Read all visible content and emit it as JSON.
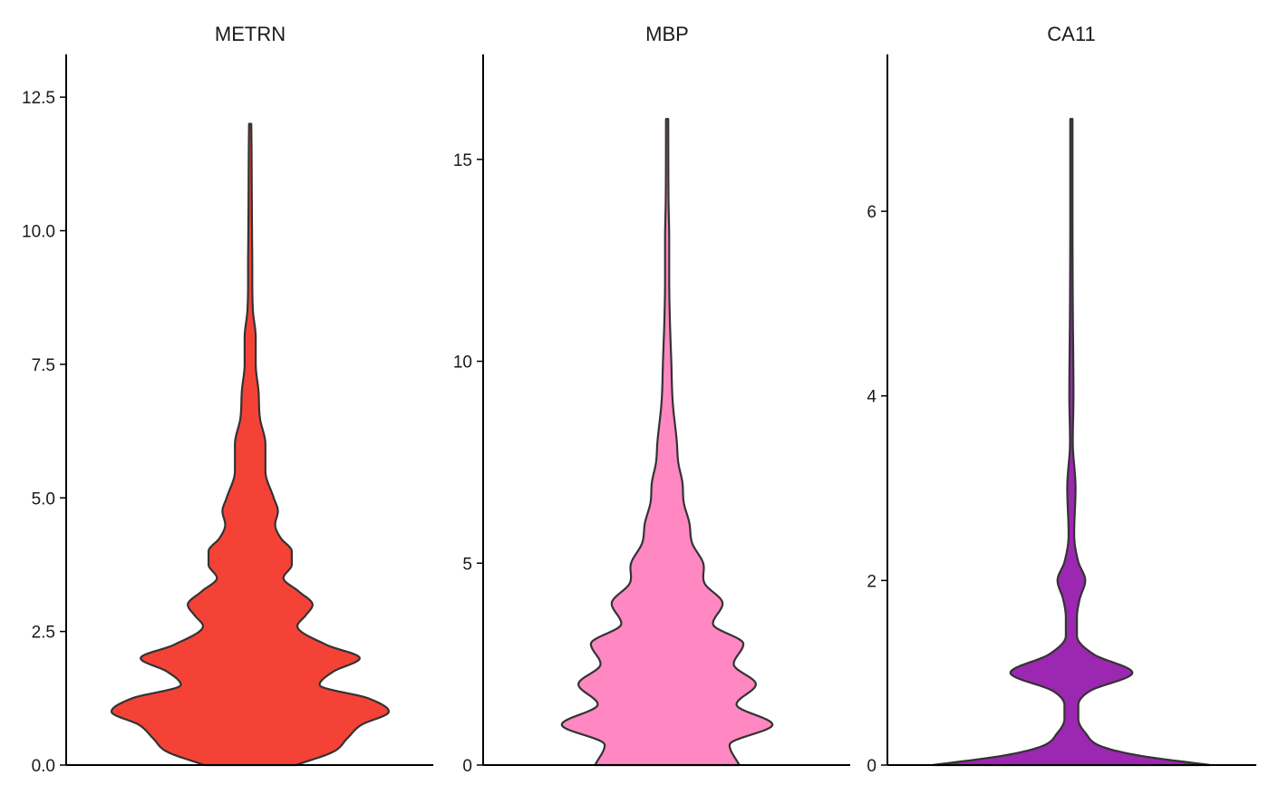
{
  "chart_data": [
    {
      "type": "violin",
      "title": "METRN",
      "xlabel": "",
      "ylabel": "",
      "ylim": [
        0,
        13.3
      ],
      "yticks": [
        0,
        2.5,
        5,
        7.5,
        10,
        12.5
      ],
      "ytick_labels": [
        "0.0",
        "2.5",
        "5.0",
        "7.5",
        "10.0",
        "12.5"
      ],
      "fill_color": "#F44336",
      "y_max": 12,
      "density": [
        {
          "y": 0,
          "w": 0.33
        },
        {
          "y": 0.25,
          "w": 0.6
        },
        {
          "y": 0.5,
          "w": 0.7
        },
        {
          "y": 0.75,
          "w": 0.8
        },
        {
          "y": 1.0,
          "w": 1.0
        },
        {
          "y": 1.25,
          "w": 0.85
        },
        {
          "y": 1.5,
          "w": 0.5
        },
        {
          "y": 1.75,
          "w": 0.6
        },
        {
          "y": 2.0,
          "w": 0.79
        },
        {
          "y": 2.25,
          "w": 0.55
        },
        {
          "y": 2.6,
          "w": 0.34
        },
        {
          "y": 2.8,
          "w": 0.4
        },
        {
          "y": 3.0,
          "w": 0.45
        },
        {
          "y": 3.25,
          "w": 0.35
        },
        {
          "y": 3.5,
          "w": 0.24
        },
        {
          "y": 3.75,
          "w": 0.3
        },
        {
          "y": 4.0,
          "w": 0.3
        },
        {
          "y": 4.25,
          "w": 0.22
        },
        {
          "y": 4.5,
          "w": 0.18
        },
        {
          "y": 4.75,
          "w": 0.2
        },
        {
          "y": 5.0,
          "w": 0.17
        },
        {
          "y": 5.5,
          "w": 0.11
        },
        {
          "y": 6.0,
          "w": 0.11
        },
        {
          "y": 6.5,
          "w": 0.07
        },
        {
          "y": 7.0,
          "w": 0.06
        },
        {
          "y": 7.5,
          "w": 0.04
        },
        {
          "y": 8.0,
          "w": 0.04
        },
        {
          "y": 8.5,
          "w": 0.02
        },
        {
          "y": 9.5,
          "w": 0.015
        },
        {
          "y": 10.5,
          "w": 0.012
        },
        {
          "y": 11.5,
          "w": 0.01
        },
        {
          "y": 12.0,
          "w": 0.008
        }
      ]
    },
    {
      "type": "violin",
      "title": "MBP",
      "xlabel": "",
      "ylabel": "",
      "ylim": [
        0,
        17.6
      ],
      "yticks": [
        0,
        5,
        10,
        15
      ],
      "ytick_labels": [
        "0",
        "5",
        "10",
        "15"
      ],
      "fill_color": "#FF88C2",
      "y_max": 16,
      "density": [
        {
          "y": 0,
          "w": 0.52
        },
        {
          "y": 0.5,
          "w": 0.45
        },
        {
          "y": 1.0,
          "w": 0.76
        },
        {
          "y": 1.5,
          "w": 0.5
        },
        {
          "y": 2.0,
          "w": 0.64
        },
        {
          "y": 2.5,
          "w": 0.48
        },
        {
          "y": 3.0,
          "w": 0.55
        },
        {
          "y": 3.5,
          "w": 0.33
        },
        {
          "y": 4.0,
          "w": 0.4
        },
        {
          "y": 4.5,
          "w": 0.27
        },
        {
          "y": 5.0,
          "w": 0.26
        },
        {
          "y": 5.5,
          "w": 0.18
        },
        {
          "y": 6.0,
          "w": 0.16
        },
        {
          "y": 6.5,
          "w": 0.12
        },
        {
          "y": 7.0,
          "w": 0.11
        },
        {
          "y": 7.5,
          "w": 0.08
        },
        {
          "y": 8.0,
          "w": 0.07
        },
        {
          "y": 9.0,
          "w": 0.04
        },
        {
          "y": 10.0,
          "w": 0.03
        },
        {
          "y": 11.0,
          "w": 0.02
        },
        {
          "y": 12.0,
          "w": 0.015
        },
        {
          "y": 13.0,
          "w": 0.015
        },
        {
          "y": 14.0,
          "w": 0.01
        },
        {
          "y": 16.0,
          "w": 0.008
        }
      ]
    },
    {
      "type": "violin",
      "title": "CA11",
      "xlabel": "",
      "ylabel": "",
      "ylim": [
        0,
        7.7
      ],
      "yticks": [
        0,
        2,
        4,
        6
      ],
      "ytick_labels": [
        "0",
        "2",
        "4",
        "6"
      ],
      "fill_color": "#9C27B0",
      "y_max": 7,
      "density": [
        {
          "y": 0,
          "w": 1.0
        },
        {
          "y": 0.1,
          "w": 0.5
        },
        {
          "y": 0.2,
          "w": 0.22
        },
        {
          "y": 0.35,
          "w": 0.1
        },
        {
          "y": 0.5,
          "w": 0.05
        },
        {
          "y": 0.65,
          "w": 0.05
        },
        {
          "y": 0.8,
          "w": 0.13
        },
        {
          "y": 1.0,
          "w": 0.44
        },
        {
          "y": 1.2,
          "w": 0.16
        },
        {
          "y": 1.4,
          "w": 0.04
        },
        {
          "y": 1.6,
          "w": 0.04
        },
        {
          "y": 1.8,
          "w": 0.06
        },
        {
          "y": 2.0,
          "w": 0.1
        },
        {
          "y": 2.2,
          "w": 0.05
        },
        {
          "y": 2.5,
          "w": 0.02
        },
        {
          "y": 3.0,
          "w": 0.03
        },
        {
          "y": 3.5,
          "w": 0.01
        },
        {
          "y": 4.0,
          "w": 0.015
        },
        {
          "y": 5.0,
          "w": 0.01
        },
        {
          "y": 6.0,
          "w": 0.008
        },
        {
          "y": 7.0,
          "w": 0.008
        }
      ]
    }
  ]
}
